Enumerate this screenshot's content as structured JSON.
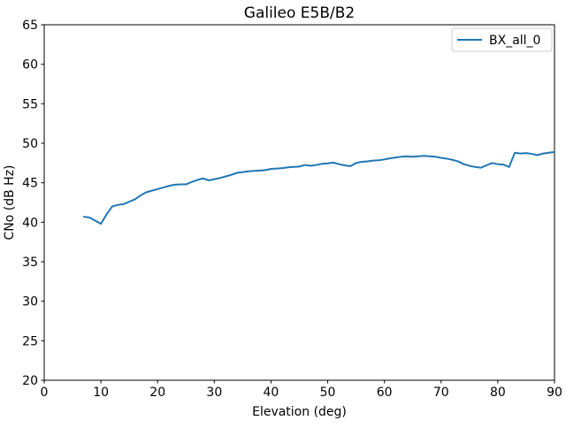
{
  "chart_data": {
    "type": "line",
    "title": "Galileo E5B/B2",
    "xlabel": "Elevation (deg)",
    "ylabel": "CNo (dB Hz)",
    "xlim": [
      0,
      90
    ],
    "ylim": [
      20,
      65
    ],
    "xticks": [
      0,
      10,
      20,
      30,
      40,
      50,
      60,
      70,
      80,
      90
    ],
    "yticks": [
      20,
      25,
      30,
      35,
      40,
      45,
      50,
      55,
      60,
      65
    ],
    "grid": false,
    "background_color": "#ffffff",
    "spine_color": "#000000",
    "legend": {
      "position": "upper right",
      "border_color": "#cccccc",
      "entries": [
        {
          "label": "BX_all_0",
          "color": "#1f77b4"
        }
      ]
    },
    "series": [
      {
        "name": "BX_all_0",
        "color": "#1f77b4",
        "x": [
          7,
          8,
          9,
          10,
          11,
          12,
          13,
          14,
          15,
          16,
          17,
          18,
          19,
          20,
          21,
          22,
          23,
          24,
          25,
          26,
          27,
          28,
          29,
          30,
          31,
          32,
          33,
          34,
          35,
          36,
          37,
          38,
          39,
          40,
          41,
          42,
          43,
          44,
          45,
          46,
          47,
          48,
          49,
          50,
          51,
          52,
          53,
          54,
          55,
          56,
          57,
          58,
          59,
          60,
          61,
          62,
          63,
          64,
          65,
          66,
          67,
          68,
          69,
          70,
          71,
          72,
          73,
          74,
          75,
          76,
          77,
          78,
          79,
          80,
          81,
          82,
          83,
          84,
          85,
          86,
          87,
          88,
          89,
          90
        ],
        "y": [
          40.7,
          40.6,
          40.2,
          39.8,
          41.0,
          42.0,
          42.2,
          42.3,
          42.6,
          42.9,
          43.4,
          43.8,
          44.0,
          44.2,
          44.4,
          44.6,
          44.75,
          44.8,
          44.8,
          45.1,
          45.35,
          45.55,
          45.3,
          45.45,
          45.6,
          45.8,
          46.0,
          46.25,
          46.35,
          46.45,
          46.5,
          46.55,
          46.6,
          46.75,
          46.8,
          46.85,
          46.95,
          47.0,
          47.05,
          47.25,
          47.15,
          47.25,
          47.4,
          47.45,
          47.55,
          47.35,
          47.2,
          47.1,
          47.5,
          47.65,
          47.7,
          47.8,
          47.85,
          47.95,
          48.1,
          48.2,
          48.3,
          48.35,
          48.3,
          48.35,
          48.4,
          48.35,
          48.3,
          48.15,
          48.05,
          47.9,
          47.7,
          47.35,
          47.15,
          47.0,
          46.9,
          47.2,
          47.5,
          47.35,
          47.3,
          47.0,
          48.8,
          48.7,
          48.75,
          48.65,
          48.5,
          48.7,
          48.8,
          48.9
        ]
      }
    ]
  }
}
